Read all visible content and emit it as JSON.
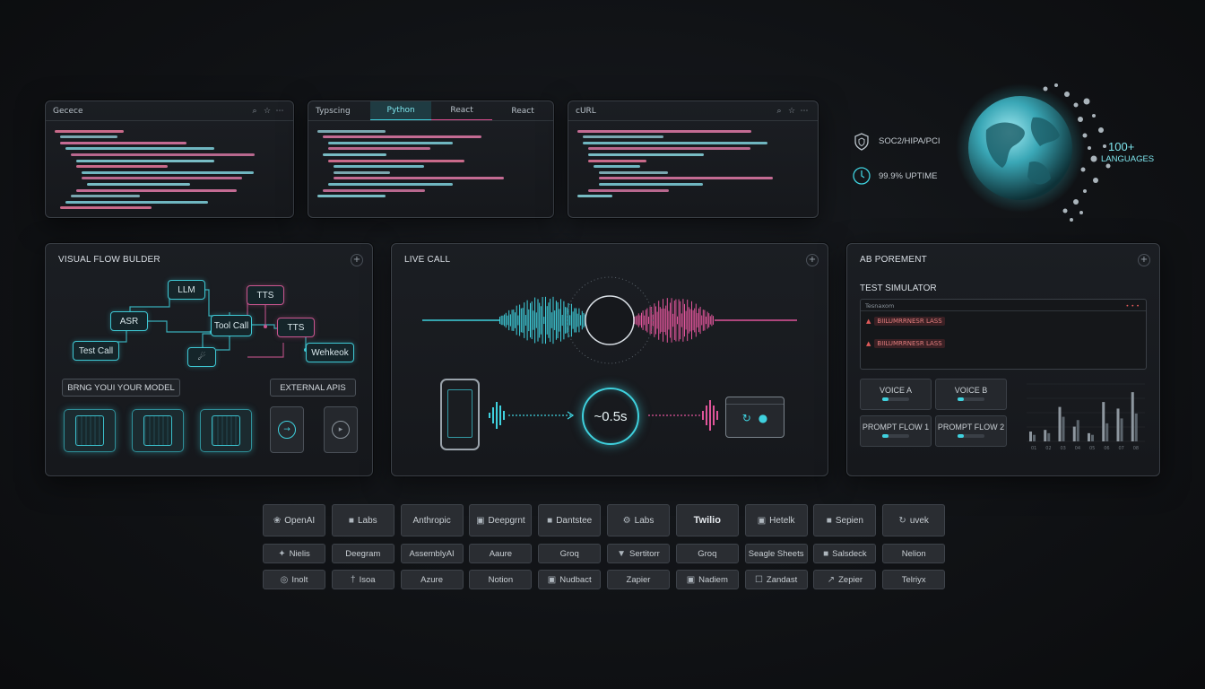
{
  "code_panels": {
    "one": {
      "title": "Gecece",
      "icons": [
        "search-icon",
        "star-icon",
        "more-icon"
      ]
    },
    "two": {
      "tabs": [
        "Typscing",
        "Python",
        "React",
        "React"
      ]
    },
    "three": {
      "title": "cURL",
      "icons": [
        "search-icon",
        "star-icon",
        "more-icon"
      ]
    }
  },
  "stats": {
    "compliance": "SOC2/HIPA/PCI",
    "uptime": "99.9% UPTIME",
    "languages_count": "100+",
    "languages_label": "LANGUAGES"
  },
  "flow": {
    "title": "VISUAL FLOW BULDER",
    "nodes": {
      "llm": "LLM",
      "tts1": "TTS",
      "asr": "ASR",
      "tool": "Tool Call",
      "tts2": "TTS",
      "test": "Test Call",
      "webhook": "Wehkeok",
      "mid": "☄"
    },
    "byom": "BRNG YOUI YOUR MODEL",
    "apis": "EXTERNAL APIS"
  },
  "live": {
    "title": "LIVE CALL",
    "latency": "~0.5s"
  },
  "ab": {
    "title": "AB POREMENT",
    "sim_title": "TEST SIMULATOR",
    "sim_header": "Tesnaxom",
    "sim_rows": [
      "BIILUMRRNESR LASS",
      "BIILUMRRNESR LASS"
    ],
    "voice_a": "VOICE A",
    "voice_b": "VOICE B",
    "flow1": "PROMPT FLOW 1",
    "flow2": "PROMPT FLOW 2",
    "chart_ticks": [
      "01",
      "02",
      "03",
      "04",
      "05",
      "06",
      "07",
      "08"
    ]
  },
  "chart_data": {
    "type": "bar",
    "categories": [
      "01",
      "02",
      "03",
      "04",
      "05",
      "06",
      "07",
      "08"
    ],
    "series": [
      {
        "values": [
          12,
          14,
          42,
          18,
          10,
          48,
          40,
          60
        ]
      },
      {
        "values": [
          8,
          10,
          30,
          26,
          8,
          22,
          28,
          34
        ]
      }
    ],
    "ylim": [
      0,
      70
    ]
  },
  "brands": {
    "row1": [
      "OpenAI",
      "Labs",
      "Anthropic",
      "Deepgrnt",
      "Dantstee",
      "Labs",
      "Twilio",
      "Hetelk",
      "Sepien",
      "uvek"
    ],
    "row2": [
      "Nielis",
      "Deegram",
      "AssemblyAI",
      "Aaure",
      "Groq",
      "Sertitorr",
      "Groq",
      "Seagle Sheets",
      "Salsdeck",
      "Nelion"
    ],
    "row3": [
      "Inolt",
      "Isoa",
      "Azure",
      "Notion",
      "Nudbact",
      "Zapier",
      "Nadiem",
      "Zandast",
      "Zepier",
      "Telriyx"
    ]
  },
  "colors": {
    "cyan": "#3fd1de",
    "pink": "#e0559a",
    "bg": "#121417"
  }
}
